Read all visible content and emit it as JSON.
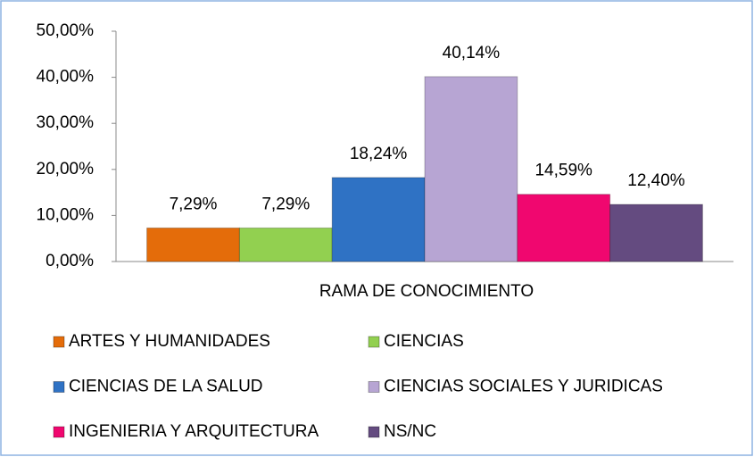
{
  "chart_data": {
    "type": "bar",
    "x_label": "RAMA DE CONOCIMIENTO",
    "categories": [
      "RAMA DE CONOCIMIENTO"
    ],
    "series": [
      {
        "name": "ARTES Y HUMANIDADES",
        "color": "#e46c0a",
        "values": [
          7.29
        ],
        "value_labels": [
          "7,29%"
        ]
      },
      {
        "name": "CIENCIAS",
        "color": "#92d050",
        "values": [
          7.29
        ],
        "value_labels": [
          "7,29%"
        ]
      },
      {
        "name": "CIENCIAS DE LA SALUD",
        "color": "#2f72c4",
        "values": [
          18.24
        ],
        "value_labels": [
          "18,24%"
        ]
      },
      {
        "name": "CIENCIAS SOCIALES Y JURIDICAS",
        "color": "#b7a5d3",
        "values": [
          40.14
        ],
        "value_labels": [
          "40,14%"
        ]
      },
      {
        "name": "INGENIERIA Y ARQUITECTURA",
        "color": "#f0076f",
        "values": [
          14.59
        ],
        "value_labels": [
          "14,59%"
        ]
      },
      {
        "name": "NS/NC",
        "color": "#644b80",
        "values": [
          12.4
        ],
        "value_labels": [
          "12,40%"
        ]
      }
    ],
    "ylim": [
      0,
      50
    ],
    "yticks": [
      {
        "value": 0,
        "label": "0,00%"
      },
      {
        "value": 10,
        "label": "10,00%"
      },
      {
        "value": 20,
        "label": "20,00%"
      },
      {
        "value": 30,
        "label": "30,00%"
      },
      {
        "value": 40,
        "label": "40,00%"
      },
      {
        "value": 50,
        "label": "50,00%"
      }
    ],
    "grid": false,
    "legend": "bottom"
  }
}
